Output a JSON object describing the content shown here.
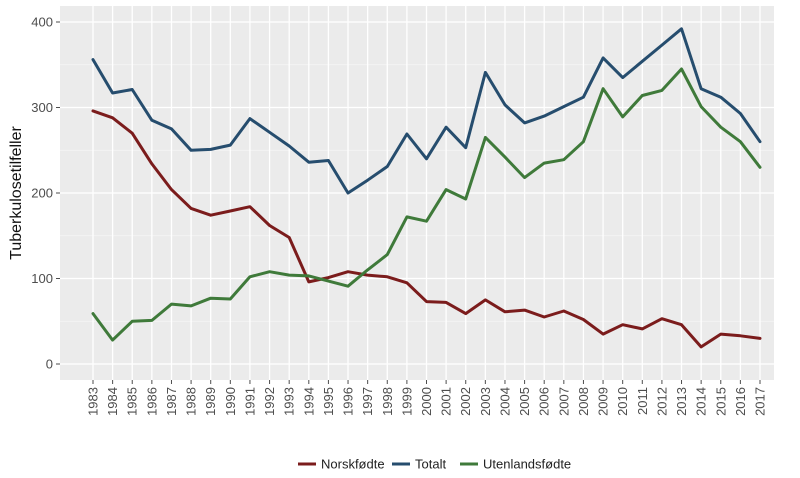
{
  "chart_data": {
    "type": "line",
    "title": "",
    "xlabel": "",
    "ylabel": "Tuberkulosetilfeller",
    "ylim": [
      0,
      400
    ],
    "yticks": [
      0,
      100,
      200,
      300,
      400
    ],
    "grid": true,
    "legend_position": "bottom",
    "x": [
      1983,
      1984,
      1985,
      1986,
      1987,
      1988,
      1989,
      1990,
      1991,
      1992,
      1993,
      1994,
      1995,
      1996,
      1997,
      1998,
      1999,
      2000,
      2001,
      2002,
      2003,
      2004,
      2005,
      2006,
      2007,
      2008,
      2009,
      2010,
      2011,
      2012,
      2013,
      2014,
      2015,
      2016,
      2017
    ],
    "series": [
      {
        "name": "Norskfødte",
        "color": "#7b1c1c",
        "values": [
          296,
          288,
          270,
          234,
          204,
          182,
          174,
          179,
          184,
          162,
          148,
          96,
          101,
          108,
          104,
          102,
          95,
          73,
          72,
          59,
          75,
          61,
          63,
          55,
          62,
          52,
          35,
          46,
          41,
          53,
          46,
          20,
          35,
          33,
          30
        ]
      },
      {
        "name": "Totalt",
        "color": "#264d6e",
        "values": [
          356,
          317,
          321,
          285,
          275,
          250,
          251,
          256,
          287,
          271,
          255,
          236,
          238,
          200,
          215,
          231,
          269,
          240,
          277,
          253,
          341,
          303,
          282,
          290,
          301,
          312,
          358,
          335,
          354,
          373,
          392,
          322,
          312,
          293,
          260
        ]
      },
      {
        "name": "Utenlandsfødte",
        "color": "#3f7a3a",
        "values": [
          59,
          28,
          50,
          51,
          70,
          68,
          77,
          76,
          102,
          108,
          104,
          103,
          97,
          91,
          110,
          128,
          172,
          167,
          204,
          193,
          265,
          242,
          218,
          235,
          239,
          260,
          322,
          289,
          314,
          320,
          345,
          301,
          277,
          260,
          230
        ]
      }
    ]
  }
}
